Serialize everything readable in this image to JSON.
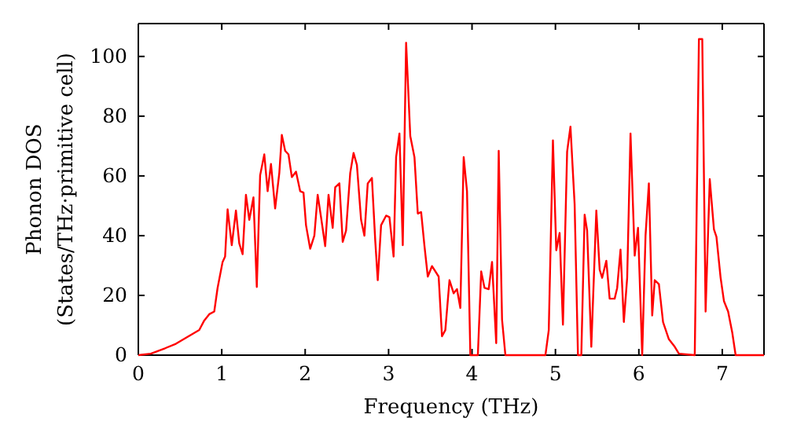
{
  "chart_data": {
    "type": "line",
    "xlabel": "Frequency (THz)",
    "ylabel": "Phonon DOS\n(States/THz·primitive cell)",
    "xlim": [
      0,
      7.5
    ],
    "ylim": [
      0,
      111
    ],
    "xticks": [
      0,
      1,
      2,
      3,
      4,
      5,
      6,
      7
    ],
    "yticks": [
      0,
      20,
      40,
      60,
      80,
      100
    ],
    "grid": false,
    "marker": "none",
    "line_style": "solid",
    "series": [
      {
        "color": "#ff0000",
        "x": [
          0,
          0.15,
          0.32,
          0.45,
          0.57,
          0.73,
          0.79,
          0.85,
          0.91,
          0.95,
          1.01,
          1.04,
          1.07,
          1.12,
          1.17,
          1.21,
          1.25,
          1.29,
          1.33,
          1.38,
          1.42,
          1.46,
          1.51,
          1.55,
          1.59,
          1.64,
          1.69,
          1.72,
          1.76,
          1.8,
          1.84,
          1.89,
          1.94,
          1.98,
          2.01,
          2.06,
          2.11,
          2.15,
          2.19,
          2.24,
          2.28,
          2.33,
          2.36,
          2.41,
          2.45,
          2.49,
          2.54,
          2.58,
          2.62,
          2.67,
          2.71,
          2.75,
          2.8,
          2.84,
          2.87,
          2.91,
          2.97,
          3.01,
          3.06,
          3.09,
          3.13,
          3.17,
          3.21,
          3.26,
          3.31,
          3.35,
          3.39,
          3.43,
          3.47,
          3.52,
          3.6,
          3.64,
          3.68,
          3.73,
          3.78,
          3.82,
          3.86,
          3.9,
          3.94,
          3.98,
          4.07,
          4.11,
          4.15,
          4.2,
          4.24,
          4.29,
          4.32,
          4.36,
          4.4,
          4.88,
          4.92,
          4.97,
          5.01,
          5.05,
          5.09,
          5.14,
          5.18,
          5.23,
          5.27,
          5.31,
          5.35,
          5.38,
          5.43,
          5.49,
          5.53,
          5.56,
          5.61,
          5.65,
          5.71,
          5.74,
          5.78,
          5.82,
          5.86,
          5.9,
          5.95,
          5.99,
          6.04,
          6.08,
          6.12,
          6.16,
          6.19,
          6.24,
          6.29,
          6.36,
          6.43,
          6.48,
          6.67,
          6.72,
          6.76,
          6.8,
          6.85,
          6.9,
          6.93,
          6.98,
          7.02,
          7.07,
          7.12,
          7.16,
          7.5
        ],
        "values": [
          0,
          0.5,
          2.3,
          3.8,
          5.8,
          8.4,
          11.6,
          13.7,
          14.6,
          22.5,
          31.2,
          33,
          48.8,
          36.8,
          48.4,
          37.4,
          33.8,
          53.7,
          45.3,
          52.8,
          22.8,
          60.2,
          67.2,
          54.9,
          64,
          49.1,
          61,
          73.7,
          68.4,
          67.2,
          59.6,
          61.4,
          54.9,
          54.4,
          43.5,
          35.6,
          40,
          53.7,
          46.2,
          36.5,
          53.7,
          42.6,
          56.2,
          57.5,
          37.9,
          41.7,
          61,
          67.7,
          63.7,
          45.3,
          40,
          57.5,
          59.3,
          38.3,
          25.1,
          43.5,
          46.7,
          46.2,
          33,
          66.3,
          74.2,
          36.8,
          104.6,
          73.3,
          66.3,
          47.4,
          47.9,
          36.5,
          26.3,
          29.8,
          26.3,
          6.3,
          8.4,
          25.1,
          20.7,
          22.1,
          15.8,
          66.3,
          54.9,
          0,
          0,
          28,
          22.5,
          22.1,
          31.2,
          4,
          68.4,
          11.9,
          0,
          0,
          8.4,
          71.9,
          35.1,
          40.9,
          10.2,
          68.1,
          76.5,
          50.5,
          0,
          0,
          47,
          41.7,
          2.8,
          48.4,
          28.6,
          25.9,
          31.6,
          18.9,
          18.9,
          22.5,
          35.3,
          11.1,
          25.9,
          74.2,
          33.3,
          42.6,
          0,
          40,
          57.5,
          13.3,
          25.1,
          23.8,
          11.1,
          5.3,
          2.8,
          0.5,
          0,
          105.8,
          105.8,
          14.6,
          58.9,
          42.1,
          39.6,
          25.9,
          18.1,
          14.6,
          7.5,
          0,
          0
        ]
      }
    ]
  }
}
